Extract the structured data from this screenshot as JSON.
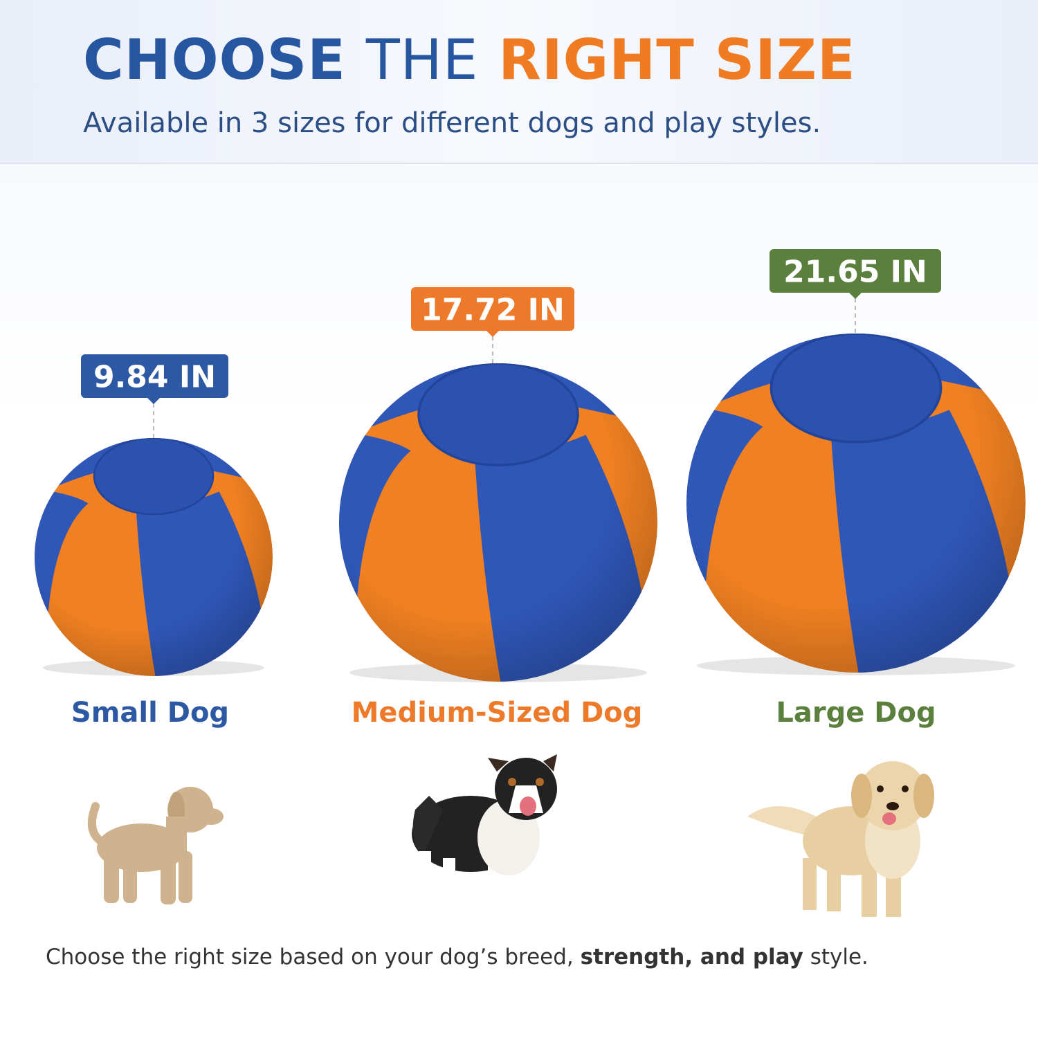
{
  "header": {
    "title": {
      "part1": "CHOOSE",
      "part2": "THE",
      "part3": "RIGHT SIZE"
    },
    "subtitle": "Available in 3 sizes for different dogs and play styles."
  },
  "sizes": [
    {
      "measure": "9.84 IN",
      "label": "Small Dog"
    },
    {
      "measure": "17.72 IN",
      "label": "Medium-Sized Dog"
    },
    {
      "measure": "21.65 IN",
      "label": "Large Dog"
    }
  ],
  "footer": {
    "text1": "Choose the right size based on your dog’s breed, ",
    "bold": "strength, and play",
    "text2": " style."
  }
}
